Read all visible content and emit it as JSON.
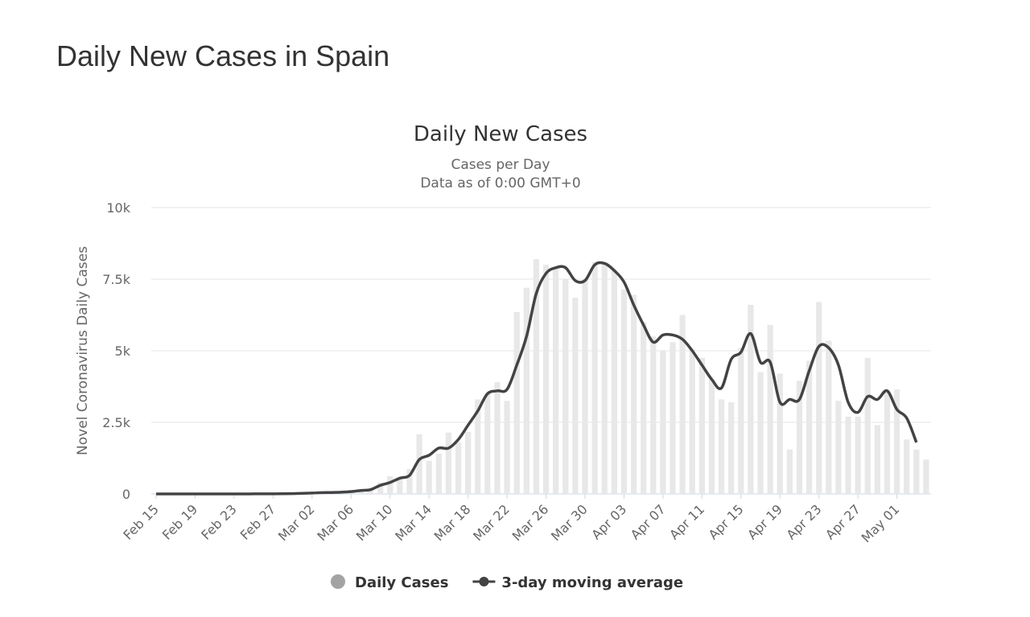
{
  "page_title": "Daily New Cases in Spain",
  "chart_data": {
    "type": "bar",
    "title": "Daily New Cases",
    "subtitle": [
      "Cases per Day",
      "Data as of 0:00 GMT+0"
    ],
    "y_label": "Novel Coronavirus Daily Cases",
    "categories": [
      "Feb 15",
      null,
      null,
      null,
      "Feb 19",
      null,
      null,
      null,
      "Feb 23",
      null,
      null,
      null,
      "Feb 27",
      null,
      null,
      null,
      "Mar 02",
      null,
      null,
      null,
      "Mar 06",
      null,
      null,
      null,
      "Mar 10",
      null,
      null,
      null,
      "Mar 14",
      null,
      null,
      null,
      "Mar 18",
      null,
      null,
      null,
      "Mar 22",
      null,
      null,
      null,
      "Mar 26",
      null,
      null,
      null,
      "Mar 30",
      null,
      null,
      null,
      "Apr 03",
      null,
      null,
      null,
      "Apr 07",
      null,
      null,
      null,
      "Apr 11",
      null,
      null,
      null,
      "Apr 15",
      null,
      null,
      null,
      "Apr 19",
      null,
      null,
      null,
      "Apr 23",
      null,
      null,
      null,
      "Apr 27",
      null,
      null,
      null,
      "May 01",
      null,
      null,
      null
    ],
    "series": [
      {
        "name": "Daily Cases",
        "type": "bar",
        "color": "#e8e8e8",
        "legend_color": "#a3a3a3",
        "values": [
          0,
          0,
          0,
          0,
          0,
          0,
          0,
          0,
          0,
          1,
          4,
          3,
          2,
          6,
          13,
          17,
          36,
          45,
          57,
          37,
          141,
          100,
          173,
          400,
          622,
          582,
          869,
          2086,
          1159,
          1407,
          2144,
          1806,
          2162,
          3300,
          3500,
          3900,
          3250,
          6350,
          7200,
          8200,
          8000,
          7900,
          7500,
          6850,
          7500,
          8100,
          8100,
          7800,
          7150,
          6950,
          6000,
          5500,
          5000,
          5300,
          6250,
          5050,
          4750,
          4000,
          3300,
          3200,
          5100,
          6600,
          4250,
          5900,
          4200,
          1550,
          3950,
          4650,
          6700,
          5350,
          3250,
          2700,
          2700,
          4750,
          2400,
          3600,
          3650,
          1900,
          1550,
          1200
        ]
      },
      {
        "name": "3-day moving average",
        "type": "line",
        "color": "#434343",
        "values": [
          0,
          0,
          0,
          0,
          0,
          0,
          0,
          0,
          0,
          0,
          2,
          3,
          4,
          6,
          10,
          20,
          30,
          45,
          50,
          60,
          80,
          120,
          150,
          300,
          400,
          550,
          650,
          1200,
          1350,
          1600,
          1600,
          1900,
          2400,
          2900,
          3500,
          3600,
          3650,
          4500,
          5500,
          7000,
          7700,
          7900,
          7900,
          7450,
          7450,
          8000,
          8050,
          7800,
          7400,
          6600,
          5900,
          5300,
          5550,
          5550,
          5400,
          5000,
          4500,
          4000,
          3700,
          4700,
          4950,
          5600,
          4600,
          4600,
          3200,
          3300,
          3300,
          4300,
          5150,
          5100,
          4500,
          3200,
          2850,
          3400,
          3300,
          3600,
          2950,
          2650,
          1800,
          null
        ]
      }
    ],
    "ylim": [
      0,
      10000
    ],
    "yticks": [
      0,
      {
        "value": 2500,
        "label": "2.5k"
      },
      {
        "value": 5000,
        "label": "5k"
      },
      {
        "value": 7500,
        "label": "7.5k"
      },
      {
        "value": 10000,
        "label": "10k"
      }
    ],
    "grid": true,
    "legend": "bottom"
  }
}
